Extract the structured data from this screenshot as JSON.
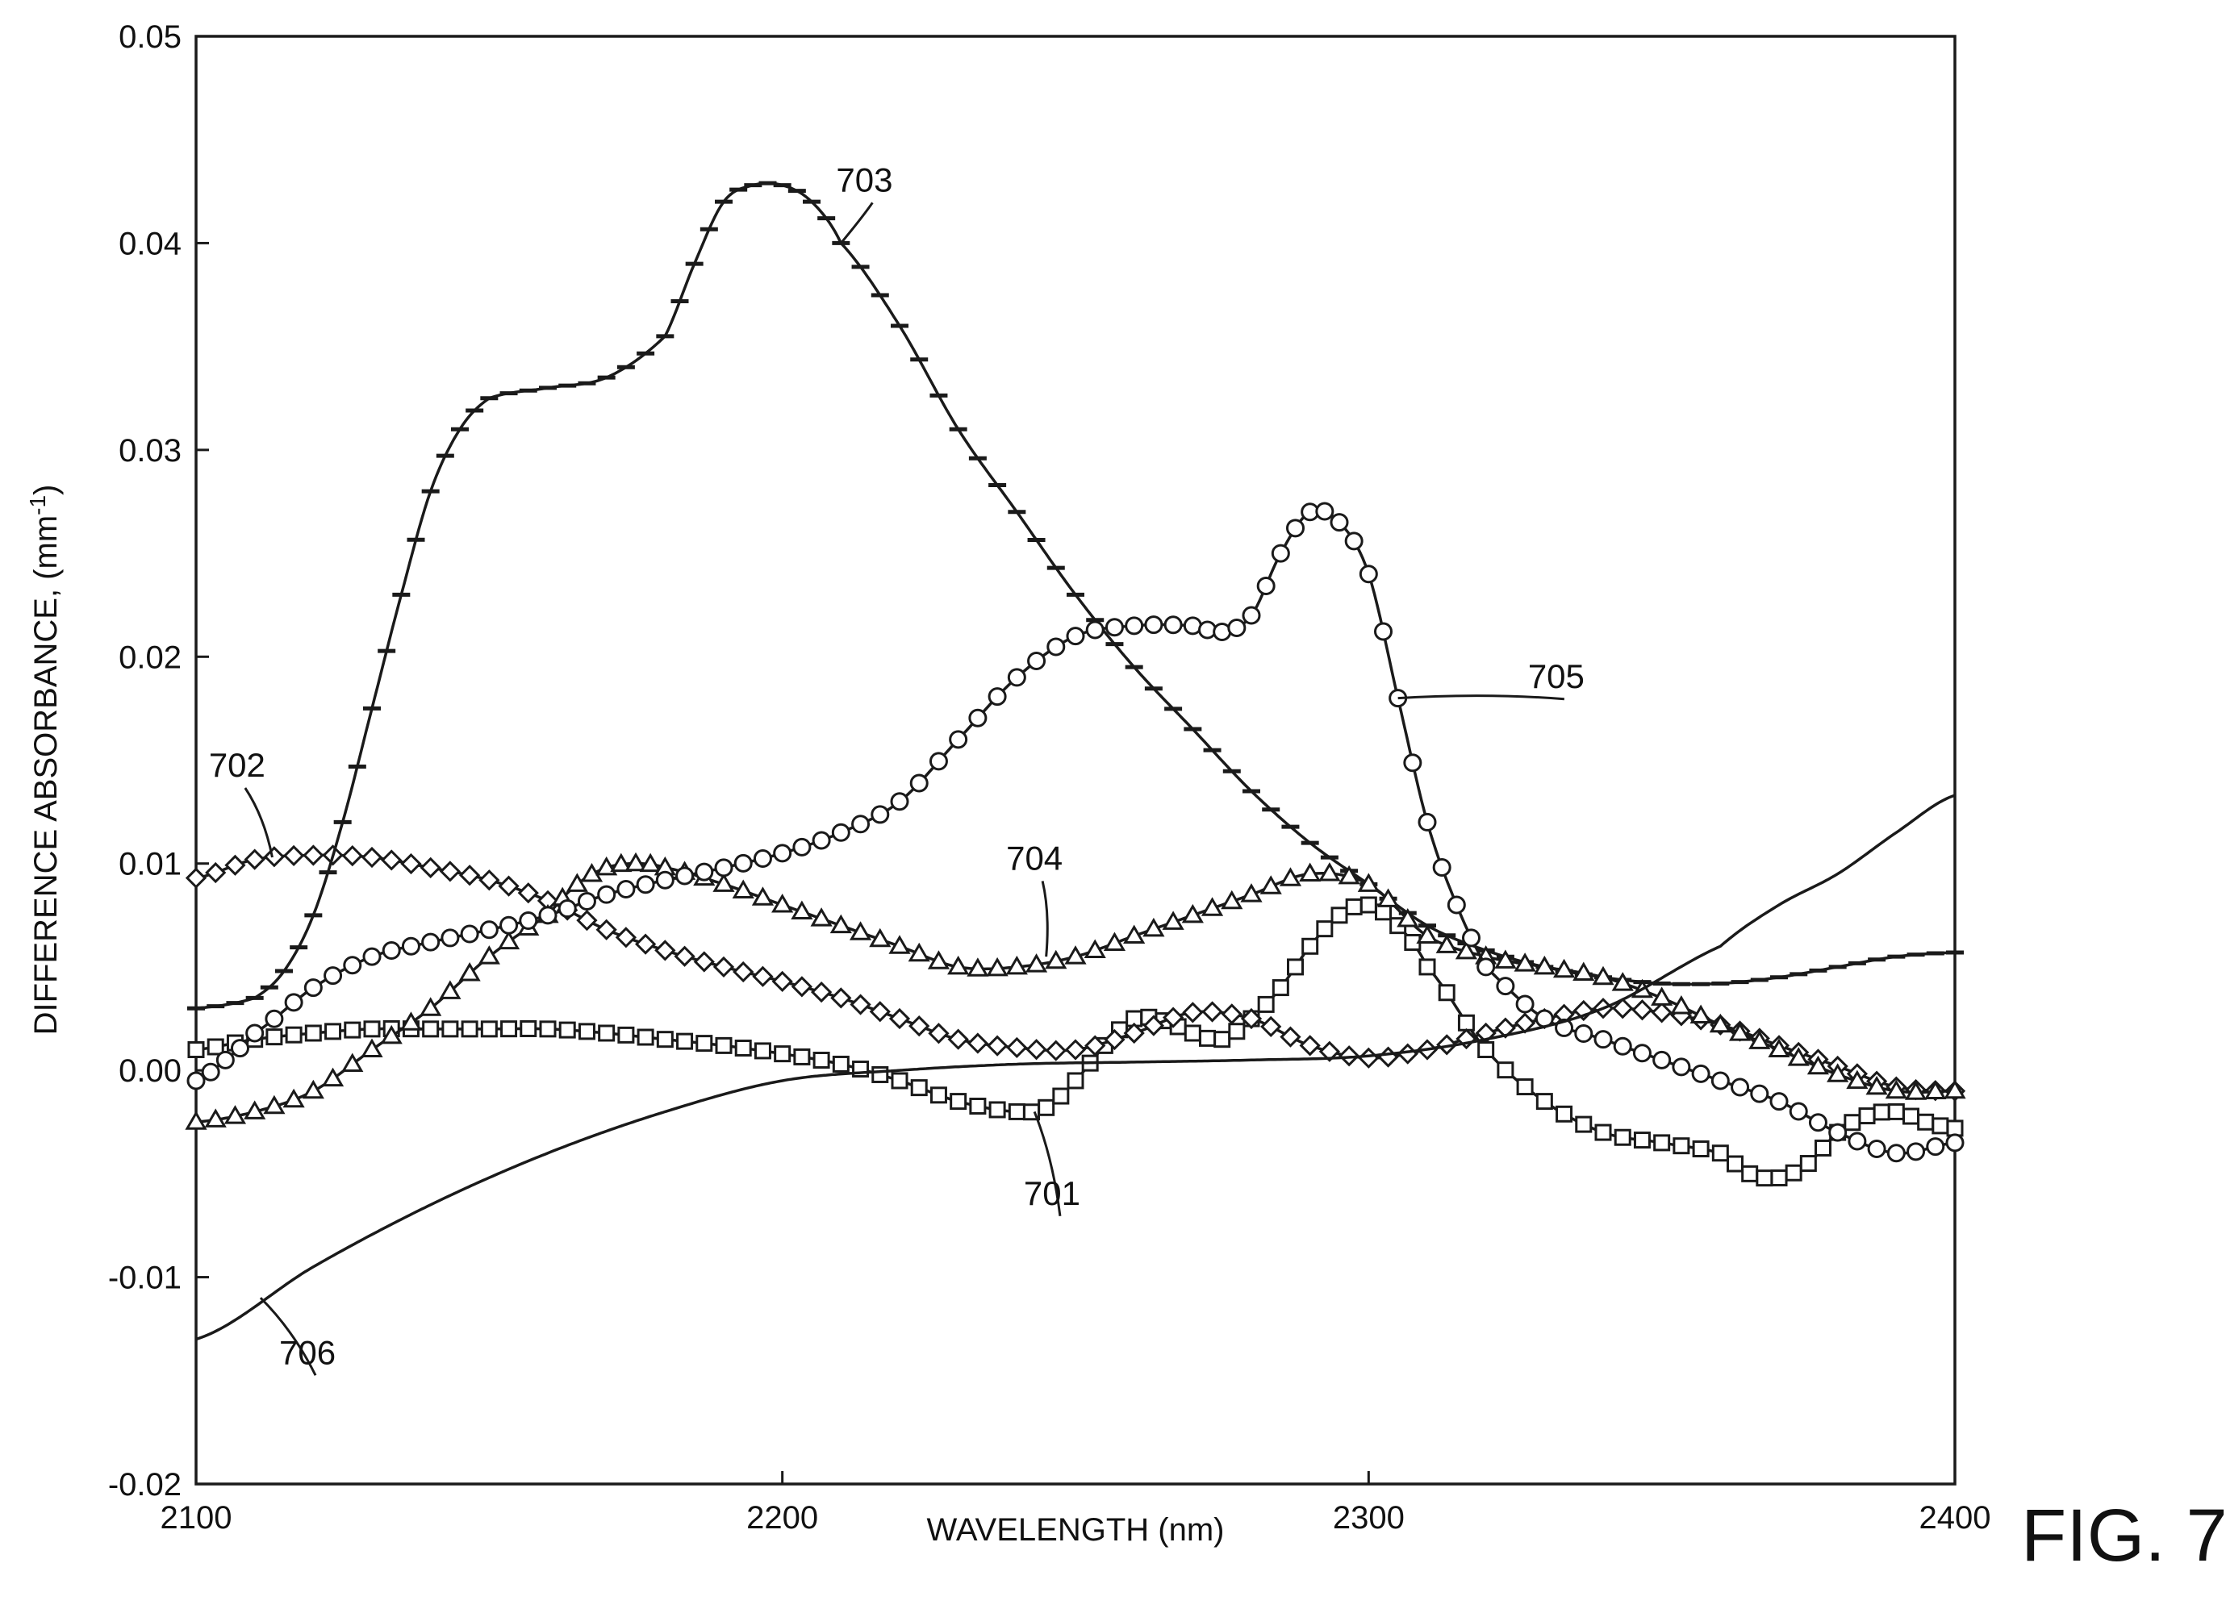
{
  "figure_label": "FIG. 7",
  "chart_data": {
    "type": "line",
    "title": "",
    "xlabel": "WAVELENGTH (nm)",
    "ylabel": "DIFFERENCE ABSORBANCE, (mm",
    "ylabel_sup": "-1",
    "ylabel_close": ")",
    "xlim": [
      2100,
      2400
    ],
    "ylim": [
      -0.02,
      0.05
    ],
    "x_ticks": [
      "2100",
      "2200",
      "2300",
      "2400"
    ],
    "y_ticks": [
      "-0.02",
      "-0.01",
      "0.00",
      "0.01",
      "0.02",
      "0.03",
      "0.04",
      "0.05"
    ],
    "grid": false,
    "legend": "none",
    "series": [
      {
        "label": "701",
        "marker": "square",
        "points": [
          [
            2100,
            0.001
          ],
          [
            2110,
            0.0015
          ],
          [
            2120,
            0.0018
          ],
          [
            2130,
            0.002
          ],
          [
            2140,
            0.002
          ],
          [
            2150,
            0.002
          ],
          [
            2160,
            0.002
          ],
          [
            2170,
            0.0018
          ],
          [
            2180,
            0.0015
          ],
          [
            2190,
            0.0012
          ],
          [
            2200,
            0.0008
          ],
          [
            2210,
            0.0003
          ],
          [
            2220,
            -0.0005
          ],
          [
            2230,
            -0.0015
          ],
          [
            2240,
            -0.002
          ],
          [
            2245,
            -0.0018
          ],
          [
            2250,
            -0.0005
          ],
          [
            2255,
            0.0012
          ],
          [
            2260,
            0.0025
          ],
          [
            2265,
            0.0024
          ],
          [
            2270,
            0.0018
          ],
          [
            2275,
            0.0015
          ],
          [
            2280,
            0.0025
          ],
          [
            2285,
            0.004
          ],
          [
            2290,
            0.006
          ],
          [
            2295,
            0.0075
          ],
          [
            2300,
            0.008
          ],
          [
            2305,
            0.007
          ],
          [
            2310,
            0.005
          ],
          [
            2320,
            0.001
          ],
          [
            2330,
            -0.0015
          ],
          [
            2340,
            -0.003
          ],
          [
            2350,
            -0.0035
          ],
          [
            2360,
            -0.004
          ],
          [
            2365,
            -0.005
          ],
          [
            2370,
            -0.0052
          ],
          [
            2375,
            -0.0045
          ],
          [
            2380,
            -0.003
          ],
          [
            2385,
            -0.0022
          ],
          [
            2390,
            -0.002
          ],
          [
            2395,
            -0.0025
          ],
          [
            2400,
            -0.0028
          ]
        ]
      },
      {
        "label": "702",
        "marker": "diamond",
        "points": [
          [
            2100,
            0.0093
          ],
          [
            2110,
            0.0102
          ],
          [
            2120,
            0.0104
          ],
          [
            2130,
            0.0103
          ],
          [
            2140,
            0.0098
          ],
          [
            2150,
            0.0092
          ],
          [
            2160,
            0.0082
          ],
          [
            2170,
            0.0068
          ],
          [
            2180,
            0.0058
          ],
          [
            2190,
            0.005
          ],
          [
            2200,
            0.0043
          ],
          [
            2210,
            0.0035
          ],
          [
            2220,
            0.0025
          ],
          [
            2230,
            0.0015
          ],
          [
            2240,
            0.0011
          ],
          [
            2250,
            0.001
          ],
          [
            2260,
            0.0018
          ],
          [
            2270,
            0.0028
          ],
          [
            2280,
            0.0025
          ],
          [
            2290,
            0.0012
          ],
          [
            2300,
            0.0006
          ],
          [
            2310,
            0.001
          ],
          [
            2320,
            0.0018
          ],
          [
            2330,
            0.0025
          ],
          [
            2340,
            0.003
          ],
          [
            2350,
            0.0028
          ],
          [
            2360,
            0.0022
          ],
          [
            2370,
            0.0012
          ],
          [
            2380,
            0.0002
          ],
          [
            2390,
            -0.0008
          ],
          [
            2400,
            -0.001
          ]
        ]
      },
      {
        "label": "703",
        "marker": "dash",
        "points": [
          [
            2100,
            0.003
          ],
          [
            2110,
            0.0035
          ],
          [
            2115,
            0.0048
          ],
          [
            2120,
            0.0075
          ],
          [
            2125,
            0.012
          ],
          [
            2130,
            0.0175
          ],
          [
            2135,
            0.023
          ],
          [
            2140,
            0.028
          ],
          [
            2145,
            0.031
          ],
          [
            2150,
            0.0325
          ],
          [
            2160,
            0.033
          ],
          [
            2170,
            0.0335
          ],
          [
            2180,
            0.0355
          ],
          [
            2185,
            0.039
          ],
          [
            2190,
            0.042
          ],
          [
            2195,
            0.0428
          ],
          [
            2200,
            0.0428
          ],
          [
            2205,
            0.042
          ],
          [
            2210,
            0.04
          ],
          [
            2220,
            0.036
          ],
          [
            2230,
            0.031
          ],
          [
            2240,
            0.027
          ],
          [
            2250,
            0.023
          ],
          [
            2260,
            0.0195
          ],
          [
            2270,
            0.0165
          ],
          [
            2280,
            0.0135
          ],
          [
            2290,
            0.011
          ],
          [
            2300,
            0.009
          ],
          [
            2310,
            0.007
          ],
          [
            2320,
            0.0058
          ],
          [
            2330,
            0.005
          ],
          [
            2340,
            0.0045
          ],
          [
            2350,
            0.0042
          ],
          [
            2360,
            0.0042
          ],
          [
            2370,
            0.0045
          ],
          [
            2380,
            0.005
          ],
          [
            2390,
            0.0055
          ],
          [
            2400,
            0.0057
          ]
        ]
      },
      {
        "label": "704",
        "marker": "triangle",
        "points": [
          [
            2100,
            -0.0025
          ],
          [
            2110,
            -0.002
          ],
          [
            2120,
            -0.001
          ],
          [
            2130,
            0.001
          ],
          [
            2140,
            0.003
          ],
          [
            2150,
            0.0055
          ],
          [
            2160,
            0.0075
          ],
          [
            2165,
            0.009
          ],
          [
            2170,
            0.0098
          ],
          [
            2175,
            0.01
          ],
          [
            2180,
            0.0098
          ],
          [
            2190,
            0.009
          ],
          [
            2200,
            0.008
          ],
          [
            2210,
            0.007
          ],
          [
            2220,
            0.006
          ],
          [
            2230,
            0.005
          ],
          [
            2240,
            0.005
          ],
          [
            2250,
            0.0055
          ],
          [
            2260,
            0.0065
          ],
          [
            2270,
            0.0075
          ],
          [
            2280,
            0.0085
          ],
          [
            2290,
            0.0095
          ],
          [
            2300,
            0.009
          ],
          [
            2310,
            0.0065
          ],
          [
            2320,
            0.0055
          ],
          [
            2330,
            0.005
          ],
          [
            2340,
            0.0045
          ],
          [
            2350,
            0.0035
          ],
          [
            2360,
            0.0022
          ],
          [
            2370,
            0.001
          ],
          [
            2380,
            -0.0002
          ],
          [
            2390,
            -0.001
          ],
          [
            2400,
            -0.001
          ]
        ]
      },
      {
        "label": "705",
        "marker": "circle",
        "points": [
          [
            2100,
            -0.0005
          ],
          [
            2105,
            0.0005
          ],
          [
            2110,
            0.0018
          ],
          [
            2120,
            0.004
          ],
          [
            2130,
            0.0055
          ],
          [
            2140,
            0.0062
          ],
          [
            2150,
            0.0068
          ],
          [
            2160,
            0.0075
          ],
          [
            2170,
            0.0085
          ],
          [
            2180,
            0.0092
          ],
          [
            2190,
            0.0098
          ],
          [
            2200,
            0.0105
          ],
          [
            2210,
            0.0115
          ],
          [
            2220,
            0.013
          ],
          [
            2230,
            0.016
          ],
          [
            2240,
            0.019
          ],
          [
            2250,
            0.021
          ],
          [
            2260,
            0.0215
          ],
          [
            2270,
            0.0215
          ],
          [
            2275,
            0.0212
          ],
          [
            2280,
            0.022
          ],
          [
            2285,
            0.025
          ],
          [
            2290,
            0.027
          ],
          [
            2295,
            0.0265
          ],
          [
            2300,
            0.024
          ],
          [
            2305,
            0.018
          ],
          [
            2310,
            0.012
          ],
          [
            2315,
            0.008
          ],
          [
            2320,
            0.005
          ],
          [
            2330,
            0.0025
          ],
          [
            2340,
            0.0015
          ],
          [
            2350,
            0.0005
          ],
          [
            2360,
            -0.0005
          ],
          [
            2370,
            -0.0015
          ],
          [
            2380,
            -0.003
          ],
          [
            2390,
            -0.004
          ],
          [
            2400,
            -0.0035
          ]
        ]
      },
      {
        "label": "706",
        "marker": "none",
        "points": [
          [
            2100,
            -0.013
          ],
          [
            2120,
            -0.0095
          ],
          [
            2140,
            -0.0065
          ],
          [
            2160,
            -0.004
          ],
          [
            2180,
            -0.002
          ],
          [
            2200,
            -0.0005
          ],
          [
            2220,
            0.0
          ],
          [
            2240,
            0.0003
          ],
          [
            2260,
            0.0004
          ],
          [
            2280,
            0.0005
          ],
          [
            2300,
            0.0007
          ],
          [
            2320,
            0.0015
          ],
          [
            2340,
            0.003
          ],
          [
            2360,
            0.006
          ],
          [
            2370,
            0.008
          ],
          [
            2380,
            0.0095
          ],
          [
            2390,
            0.0115
          ],
          [
            2400,
            0.0133
          ]
        ]
      }
    ],
    "annotations": [
      {
        "text": "703",
        "x": 2214,
        "y": 0.0425,
        "to_x": 2210,
        "to_y": 0.04
      },
      {
        "text": "702",
        "x": 2107,
        "y": 0.0142,
        "to_x": 2113,
        "to_y": 0.0103
      },
      {
        "text": "705",
        "x": 2332,
        "y": 0.0185,
        "to_x": 2305,
        "to_y": 0.018
      },
      {
        "text": "704",
        "x": 2243,
        "y": 0.0097,
        "to_x": 2245,
        "to_y": 0.0055
      },
      {
        "text": "701",
        "x": 2246,
        "y": -0.0065,
        "to_x": 2243,
        "to_y": -0.002
      },
      {
        "text": "706",
        "x": 2119,
        "y": -0.0142,
        "to_x": 2111,
        "to_y": -0.011
      }
    ]
  }
}
